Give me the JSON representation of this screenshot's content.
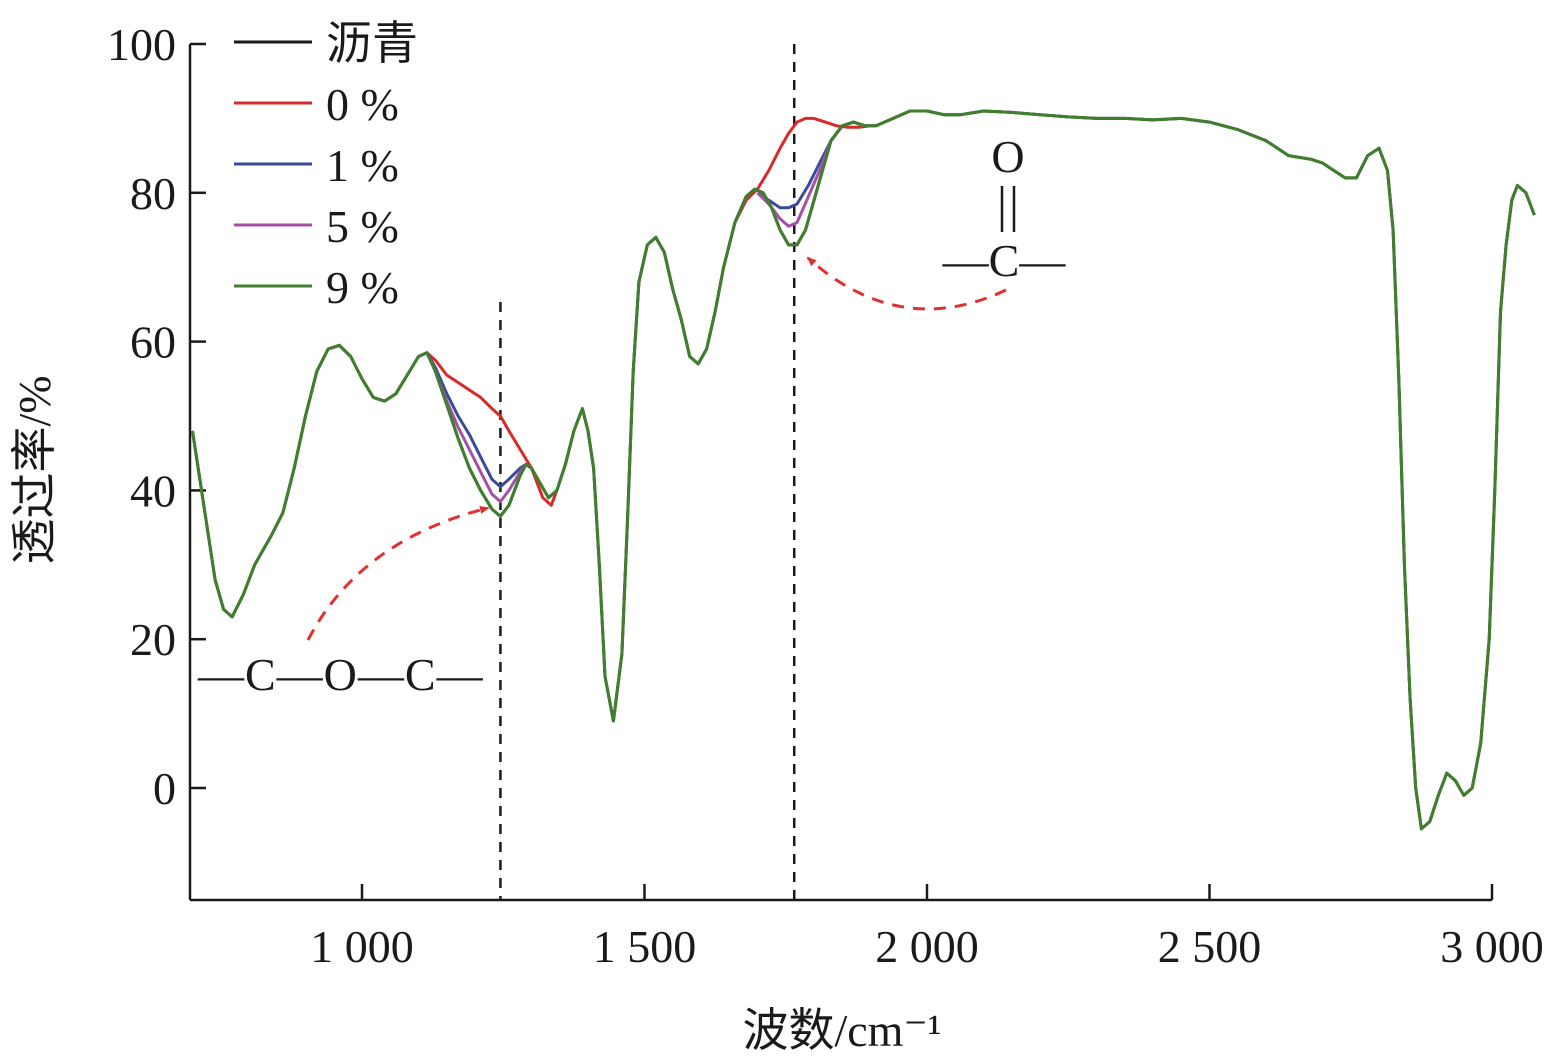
{
  "chart_data": {
    "type": "line",
    "title": "",
    "xlabel": "波数/cm⁻¹",
    "ylabel": "透过率/%",
    "xlim": [
      700,
      3050
    ],
    "ylim": [
      -15,
      100
    ],
    "xticks": [
      1000,
      1500,
      2000,
      2500,
      3000
    ],
    "xtick_labels": [
      "1 000",
      "1 500",
      "2 000",
      "2 500",
      "3 000"
    ],
    "yticks": [
      0,
      20,
      40,
      60,
      80,
      100
    ],
    "ytick_labels": [
      "0",
      "20",
      "40",
      "60",
      "80",
      "100"
    ],
    "grid": false,
    "legend_position": "top-left",
    "series": [
      {
        "name": "沥青",
        "color": "#1a1a1a",
        "values": [
          [
            700,
            48
          ],
          [
            720,
            38
          ],
          [
            740,
            28
          ],
          [
            755,
            24
          ],
          [
            770,
            23
          ],
          [
            790,
            26
          ],
          [
            810,
            30
          ],
          [
            840,
            34
          ],
          [
            860,
            37
          ],
          [
            880,
            43
          ],
          [
            900,
            50
          ],
          [
            920,
            56
          ],
          [
            940,
            59
          ],
          [
            960,
            59.5
          ],
          [
            980,
            58
          ],
          [
            1000,
            55
          ],
          [
            1020,
            52.5
          ],
          [
            1040,
            52
          ],
          [
            1060,
            53
          ],
          [
            1080,
            55.5
          ],
          [
            1100,
            58
          ],
          [
            1115,
            58.5
          ],
          [
            1130,
            56
          ],
          [
            1150,
            51.5
          ],
          [
            1170,
            47
          ],
          [
            1190,
            43
          ],
          [
            1210,
            40
          ],
          [
            1230,
            37.5
          ],
          [
            1245,
            36.5
          ],
          [
            1260,
            38
          ],
          [
            1280,
            42
          ],
          [
            1290,
            43.5
          ],
          [
            1300,
            43
          ],
          [
            1315,
            41
          ],
          [
            1330,
            39
          ],
          [
            1345,
            40
          ],
          [
            1360,
            43.5
          ],
          [
            1375,
            48
          ],
          [
            1390,
            51
          ],
          [
            1400,
            48
          ],
          [
            1410,
            43
          ],
          [
            1420,
            30
          ],
          [
            1430,
            15
          ],
          [
            1445,
            9
          ],
          [
            1460,
            18
          ],
          [
            1470,
            36
          ],
          [
            1480,
            56
          ],
          [
            1490,
            68
          ],
          [
            1505,
            73
          ],
          [
            1520,
            74
          ],
          [
            1535,
            72
          ],
          [
            1550,
            67
          ],
          [
            1565,
            63
          ],
          [
            1580,
            58
          ],
          [
            1595,
            57
          ],
          [
            1610,
            59
          ],
          [
            1625,
            64
          ],
          [
            1640,
            70
          ],
          [
            1660,
            76
          ],
          [
            1680,
            79.5
          ],
          [
            1695,
            80.5
          ],
          [
            1710,
            80
          ],
          [
            1725,
            78
          ],
          [
            1740,
            75
          ],
          [
            1755,
            73
          ],
          [
            1770,
            73
          ],
          [
            1785,
            75
          ],
          [
            1800,
            79
          ],
          [
            1815,
            83
          ],
          [
            1830,
            87
          ],
          [
            1850,
            89
          ],
          [
            1870,
            89.5
          ],
          [
            1890,
            89
          ],
          [
            1910,
            89
          ],
          [
            1940,
            90
          ],
          [
            1970,
            91
          ],
          [
            2000,
            91
          ],
          [
            2030,
            90.5
          ],
          [
            2060,
            90.5
          ],
          [
            2100,
            91
          ],
          [
            2150,
            90.8
          ],
          [
            2200,
            90.5
          ],
          [
            2250,
            90.2
          ],
          [
            2300,
            90
          ],
          [
            2350,
            90
          ],
          [
            2400,
            89.8
          ],
          [
            2450,
            90
          ],
          [
            2500,
            89.5
          ],
          [
            2550,
            88.5
          ],
          [
            2600,
            87
          ],
          [
            2640,
            85
          ],
          [
            2680,
            84.5
          ],
          [
            2700,
            84
          ],
          [
            2720,
            83
          ],
          [
            2740,
            82
          ],
          [
            2760,
            82
          ],
          [
            2780,
            85
          ],
          [
            2800,
            86
          ],
          [
            2815,
            83
          ],
          [
            2825,
            75
          ],
          [
            2835,
            55
          ],
          [
            2845,
            30
          ],
          [
            2855,
            12
          ],
          [
            2865,
            0
          ],
          [
            2875,
            -5.5
          ],
          [
            2890,
            -4.5
          ],
          [
            2905,
            -1
          ],
          [
            2920,
            2
          ],
          [
            2935,
            1
          ],
          [
            2950,
            -1
          ],
          [
            2965,
            0
          ],
          [
            2980,
            6
          ],
          [
            2995,
            20
          ],
          [
            3005,
            40
          ],
          [
            3015,
            64
          ],
          [
            3025,
            73
          ],
          [
            3035,
            79
          ],
          [
            3045,
            81
          ],
          [
            3060,
            80
          ],
          [
            3075,
            77
          ]
        ]
      },
      {
        "name": "0 %",
        "color": "#d92a2a",
        "values": [
          [
            1100,
            58
          ],
          [
            1115,
            58.5
          ],
          [
            1130,
            57.5
          ],
          [
            1150,
            55.5
          ],
          [
            1170,
            54.5
          ],
          [
            1190,
            53.5
          ],
          [
            1210,
            52.5
          ],
          [
            1230,
            51
          ],
          [
            1245,
            50
          ],
          [
            1260,
            48
          ],
          [
            1280,
            45.5
          ],
          [
            1300,
            43
          ],
          [
            1320,
            39
          ],
          [
            1335,
            38
          ],
          [
            1345,
            40
          ]
        ]
      },
      {
        "name": "1 %",
        "color": "#3a4a9a",
        "values": [
          [
            1100,
            58
          ],
          [
            1115,
            58.5
          ],
          [
            1130,
            56.5
          ],
          [
            1150,
            53
          ],
          [
            1170,
            50
          ],
          [
            1190,
            47.5
          ],
          [
            1210,
            44.5
          ],
          [
            1230,
            41.5
          ],
          [
            1245,
            40.5
          ],
          [
            1260,
            41.5
          ],
          [
            1280,
            43
          ],
          [
            1290,
            43.5
          ],
          [
            1300,
            43
          ]
        ]
      },
      {
        "name": "5 %",
        "color": "#a64fa6",
        "values": [
          [
            1100,
            58
          ],
          [
            1115,
            58.5
          ],
          [
            1130,
            56
          ],
          [
            1150,
            52
          ],
          [
            1170,
            48.5
          ],
          [
            1190,
            45.5
          ],
          [
            1210,
            42.5
          ],
          [
            1230,
            39.5
          ],
          [
            1245,
            38.5
          ],
          [
            1260,
            40
          ],
          [
            1280,
            42.5
          ],
          [
            1290,
            43.5
          ],
          [
            1300,
            43
          ]
        ]
      },
      {
        "name": "9 %",
        "color": "#3f7f2e",
        "values": [
          [
            700,
            48
          ],
          [
            720,
            38
          ],
          [
            740,
            28
          ],
          [
            755,
            24
          ],
          [
            770,
            23
          ],
          [
            790,
            26
          ],
          [
            810,
            30
          ],
          [
            840,
            34
          ],
          [
            860,
            37
          ],
          [
            880,
            43
          ],
          [
            900,
            50
          ],
          [
            920,
            56
          ],
          [
            940,
            59
          ],
          [
            960,
            59.5
          ],
          [
            980,
            58
          ],
          [
            1000,
            55
          ],
          [
            1020,
            52.5
          ],
          [
            1040,
            52
          ],
          [
            1060,
            53
          ],
          [
            1080,
            55.5
          ],
          [
            1100,
            58
          ],
          [
            1115,
            58.5
          ],
          [
            1130,
            56
          ],
          [
            1150,
            51.5
          ],
          [
            1170,
            47
          ],
          [
            1190,
            43
          ],
          [
            1210,
            40
          ],
          [
            1230,
            37.5
          ],
          [
            1245,
            36.5
          ],
          [
            1260,
            38
          ],
          [
            1280,
            42
          ],
          [
            1290,
            43.5
          ],
          [
            1300,
            43
          ],
          [
            1315,
            41
          ],
          [
            1330,
            39
          ],
          [
            1345,
            40
          ],
          [
            1360,
            43.5
          ],
          [
            1375,
            48
          ],
          [
            1390,
            51
          ],
          [
            1400,
            48
          ],
          [
            1410,
            43
          ],
          [
            1420,
            30
          ],
          [
            1430,
            15
          ],
          [
            1445,
            9
          ],
          [
            1460,
            18
          ],
          [
            1470,
            36
          ],
          [
            1480,
            56
          ],
          [
            1490,
            68
          ],
          [
            1505,
            73
          ],
          [
            1520,
            74
          ],
          [
            1535,
            72
          ],
          [
            1550,
            67
          ],
          [
            1565,
            63
          ],
          [
            1580,
            58
          ],
          [
            1595,
            57
          ],
          [
            1610,
            59
          ],
          [
            1625,
            64
          ],
          [
            1640,
            70
          ],
          [
            1660,
            76
          ],
          [
            1680,
            79.5
          ],
          [
            1695,
            80.5
          ],
          [
            1710,
            80
          ],
          [
            1725,
            78
          ],
          [
            1740,
            75
          ],
          [
            1755,
            73
          ],
          [
            1770,
            73
          ],
          [
            1785,
            75
          ],
          [
            1800,
            79
          ],
          [
            1815,
            83
          ],
          [
            1830,
            87
          ],
          [
            1850,
            89
          ],
          [
            1870,
            89.5
          ],
          [
            1890,
            89
          ],
          [
            1910,
            89
          ],
          [
            1940,
            90
          ],
          [
            1970,
            91
          ],
          [
            2000,
            91
          ],
          [
            2030,
            90.5
          ],
          [
            2060,
            90.5
          ],
          [
            2100,
            91
          ],
          [
            2150,
            90.8
          ],
          [
            2200,
            90.5
          ],
          [
            2250,
            90.2
          ],
          [
            2300,
            90
          ],
          [
            2350,
            90
          ],
          [
            2400,
            89.8
          ],
          [
            2450,
            90
          ],
          [
            2500,
            89.5
          ],
          [
            2550,
            88.5
          ],
          [
            2600,
            87
          ],
          [
            2640,
            85
          ],
          [
            2680,
            84.5
          ],
          [
            2700,
            84
          ],
          [
            2720,
            83
          ],
          [
            2740,
            82
          ],
          [
            2760,
            82
          ],
          [
            2780,
            85
          ],
          [
            2800,
            86
          ],
          [
            2815,
            83
          ],
          [
            2825,
            75
          ],
          [
            2835,
            55
          ],
          [
            2845,
            30
          ],
          [
            2855,
            12
          ],
          [
            2865,
            0
          ],
          [
            2875,
            -5.5
          ],
          [
            2890,
            -4.5
          ],
          [
            2905,
            -1
          ],
          [
            2920,
            2
          ],
          [
            2935,
            1
          ],
          [
            2950,
            -1
          ],
          [
            2965,
            0
          ],
          [
            2980,
            6
          ],
          [
            2995,
            20
          ],
          [
            3005,
            40
          ],
          [
            3015,
            64
          ],
          [
            3025,
            73
          ],
          [
            3035,
            79
          ],
          [
            3045,
            81
          ],
          [
            3060,
            80
          ],
          [
            3075,
            77
          ]
        ]
      }
    ],
    "carbonyl_region": {
      "0 %": [
        [
          1660,
          76
        ],
        [
          1680,
          79
        ],
        [
          1700,
          80.5
        ],
        [
          1720,
          83
        ],
        [
          1740,
          86
        ],
        [
          1755,
          88
        ],
        [
          1770,
          89.5
        ],
        [
          1785,
          90
        ],
        [
          1800,
          90
        ],
        [
          1820,
          89.5
        ],
        [
          1840,
          89
        ],
        [
          1860,
          88.8
        ],
        [
          1880,
          88.8
        ],
        [
          1900,
          89
        ]
      ],
      "1 %": [
        [
          1700,
          80
        ],
        [
          1720,
          79
        ],
        [
          1740,
          78
        ],
        [
          1755,
          78
        ],
        [
          1770,
          78.5
        ],
        [
          1790,
          81
        ],
        [
          1810,
          84
        ],
        [
          1830,
          87
        ],
        [
          1850,
          89
        ]
      ],
      "5 %": [
        [
          1700,
          80
        ],
        [
          1720,
          78.5
        ],
        [
          1740,
          76.5
        ],
        [
          1755,
          75.5
        ],
        [
          1770,
          76
        ],
        [
          1790,
          79.5
        ],
        [
          1810,
          83
        ],
        [
          1830,
          87
        ],
        [
          1850,
          89
        ]
      ]
    },
    "reference_lines_x": [
      1245,
      1765
    ],
    "annotations": [
      {
        "text": "—C—O—C—",
        "points_to_x": 1245
      },
      {
        "text_top": "O",
        "text_bond": "‖",
        "text_main": "—C—",
        "points_to_x": 1765
      }
    ]
  }
}
